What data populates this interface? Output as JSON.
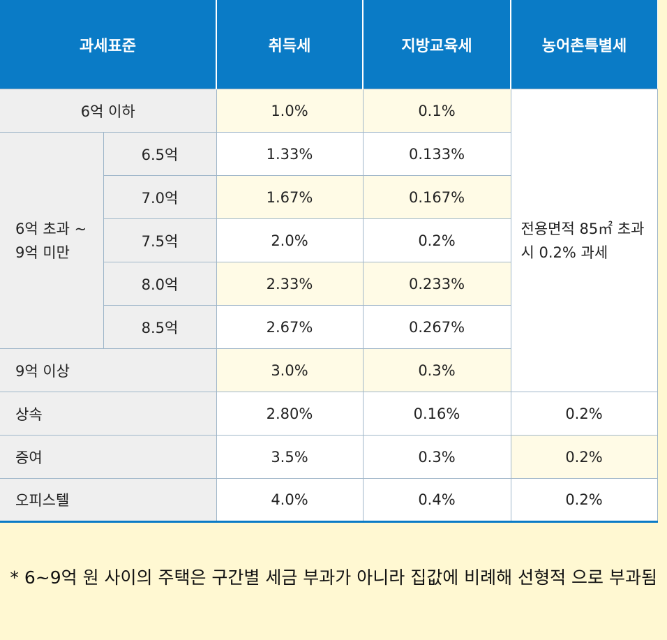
{
  "table": {
    "header": [
      "과세표준",
      "취득세",
      "지방교육세",
      "농어촌특별세"
    ],
    "rows": [
      [
        "6억 이하",
        "1.0%",
        "0.1%",
        "전용면적 85㎡ 초과 시 0.2% 과세"
      ],
      [
        "6억 초과 ~9억 미만",
        "6.5억",
        "1.33%",
        "0.133%"
      ],
      [
        "7.0억",
        "1.67%",
        "0.167%"
      ],
      [
        "7.5억",
        "2.0%",
        "0.2%"
      ],
      [
        "8.0억",
        "2.33%",
        "0.233%"
      ],
      [
        "8.5억",
        "2.67%",
        "0.267%"
      ],
      [
        "9억 이상",
        "3.0%",
        "0.3%"
      ],
      [
        "상속",
        "2.80%",
        "0.16%",
        "0.2%"
      ],
      [
        "증여",
        "3.5%",
        "0.3%",
        "0.2%"
      ],
      [
        "오피스텔",
        "4.0%",
        "0.4%",
        "0.2%"
      ]
    ]
  },
  "footnote": "* 6~9억 원 사이의 주택은 구간별 세금 부과가 아니라 집값에 비례해 선형적 으로 부과됨"
}
